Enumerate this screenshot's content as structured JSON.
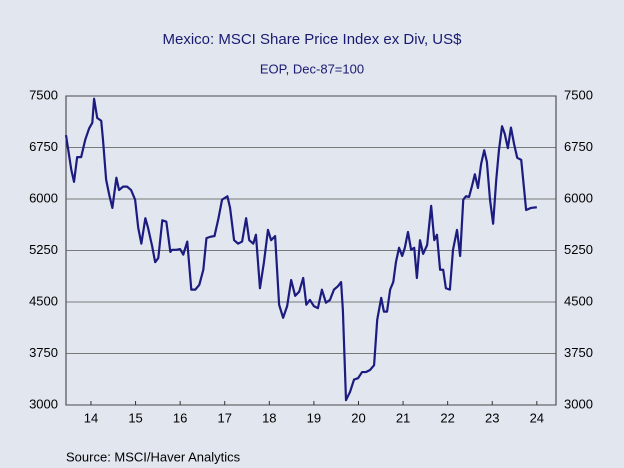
{
  "chart_data": {
    "type": "line",
    "title": "Mexico: MSCI Share Price Index ex Div, US$",
    "subtitle": "EOP, Dec-87=100",
    "source": "Source:  MSCI/Haver Analytics",
    "x": [
      13.94,
      14.06,
      14.12,
      14.19,
      14.28,
      14.37,
      14.46,
      14.53,
      14.57,
      14.64,
      14.73,
      14.77,
      14.84,
      14.91,
      14.98,
      15.07,
      15.13,
      15.22,
      15.31,
      15.4,
      15.49,
      15.56,
      15.63,
      15.72,
      15.78,
      15.87,
      15.94,
      16.01,
      16.1,
      16.19,
      16.28,
      16.32,
      16.41,
      16.5,
      16.57,
      16.66,
      16.75,
      16.84,
      16.93,
      17.02,
      17.09,
      17.18,
      17.27,
      17.36,
      17.44,
      17.56,
      17.62,
      17.71,
      17.8,
      17.89,
      17.98,
      18.05,
      18.14,
      18.2,
      18.29,
      18.38,
      18.47,
      18.54,
      18.63,
      18.72,
      18.81,
      18.9,
      18.99,
      19.08,
      19.17,
      19.26,
      19.33,
      19.41,
      19.5,
      19.59,
      19.68,
      19.77,
      19.86,
      19.95,
      20.04,
      20.11,
      20.15,
      20.22,
      20.31,
      20.4,
      20.49,
      20.58,
      20.67,
      20.76,
      20.85,
      20.92,
      21.01,
      21.07,
      21.14,
      21.21,
      21.28,
      21.34,
      21.41,
      21.48,
      21.54,
      21.61,
      21.68,
      21.75,
      21.81,
      21.88,
      21.95,
      22.04,
      22.13,
      22.2,
      22.26,
      22.33,
      22.4,
      22.46,
      22.55,
      22.62,
      22.71,
      22.78,
      22.85,
      22.91,
      22.98,
      23.05,
      23.11,
      23.18,
      23.25,
      23.32,
      23.38,
      23.45,
      23.52,
      23.59,
      23.65,
      23.72,
      23.78,
      23.85,
      23.92,
      23.99,
      24.06,
      24.15,
      24.26,
      24.37,
      24.5
    ],
    "series": [
      {
        "color": "#1c1c80",
        "values": [
          6930,
          6420,
          6250,
          6610,
          6610,
          6860,
          7030,
          7110,
          7460,
          7180,
          7140,
          6860,
          6280,
          6060,
          5870,
          6310,
          6130,
          6180,
          6180,
          6130,
          5990,
          5580,
          5350,
          5720,
          5580,
          5320,
          5080,
          5140,
          5690,
          5670,
          5230,
          5260,
          5260,
          5270,
          5190,
          5380,
          4680,
          4680,
          4750,
          4970,
          5430,
          5450,
          5460,
          5720,
          5990,
          6040,
          5870,
          5400,
          5350,
          5380,
          5720,
          5400,
          5350,
          5480,
          4700,
          5080,
          5550,
          5400,
          5460,
          4460,
          4270,
          4440,
          4820,
          4590,
          4650,
          4850,
          4460,
          4530,
          4440,
          4410,
          4680,
          4490,
          4530,
          4680,
          4730,
          4790,
          4380,
          3070,
          3190,
          3370,
          3390,
          3480,
          3480,
          3510,
          3580,
          4240,
          4560,
          4360,
          4360,
          4680,
          4790,
          5080,
          5290,
          5170,
          5290,
          5520,
          5260,
          5290,
          4850,
          5400,
          5200,
          5330,
          5900,
          5400,
          5480,
          4970,
          4970,
          4700,
          4680,
          5260,
          5550,
          5170,
          5990,
          6040,
          6030,
          6200,
          6360,
          6160,
          6510,
          6710,
          6540,
          5990,
          5640,
          6280,
          6710,
          7060,
          6950,
          6740,
          7040,
          6800,
          6600,
          6570,
          5840,
          5870,
          5880
        ]
      }
    ],
    "xlim": [
      13.94,
      24.93
    ],
    "xticks": [
      {
        "value": 14.5,
        "label": "14"
      },
      {
        "value": 15.5,
        "label": "15"
      },
      {
        "value": 16.5,
        "label": "16"
      },
      {
        "value": 17.5,
        "label": "17"
      },
      {
        "value": 18.5,
        "label": "18"
      },
      {
        "value": 19.5,
        "label": "19"
      },
      {
        "value": 20.5,
        "label": "20"
      },
      {
        "value": 21.5,
        "label": "21"
      },
      {
        "value": 22.5,
        "label": "22"
      },
      {
        "value": 23.5,
        "label": "23"
      },
      {
        "value": 24.5,
        "label": "24"
      }
    ],
    "ylim": [
      3000,
      7500
    ],
    "yticks": [
      3000,
      3750,
      4500,
      5250,
      6000,
      6750,
      7500
    ],
    "grid": true
  }
}
